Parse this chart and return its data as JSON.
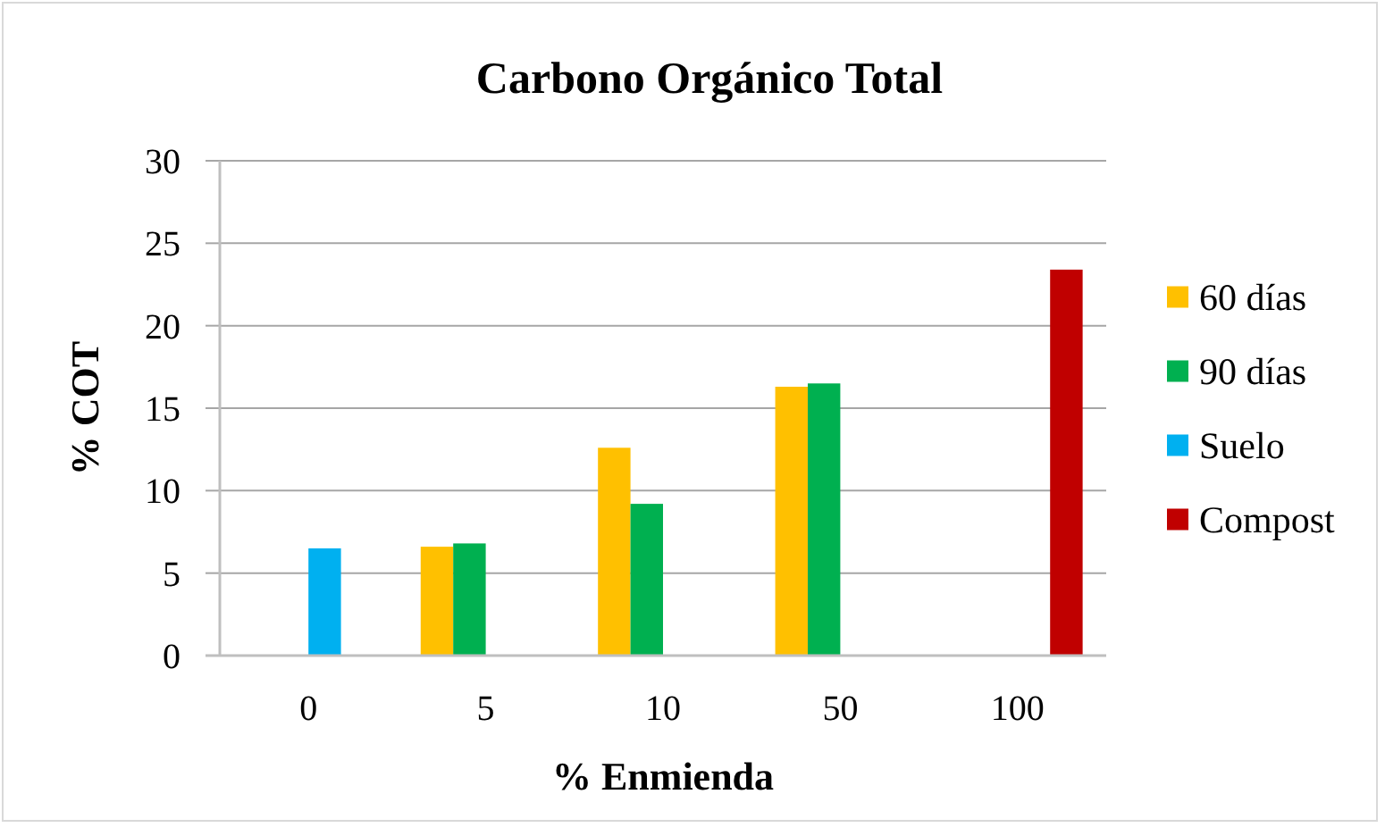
{
  "chart_data": {
    "type": "bar",
    "title": "Carbono Orgánico Total",
    "xlabel": "% Enmienda",
    "ylabel": "% COT",
    "categories": [
      "0",
      "5",
      "10",
      "50",
      "100"
    ],
    "series": [
      {
        "name": "60 días",
        "color": "#ffc000",
        "values": [
          null,
          6.6,
          12.6,
          16.3,
          null
        ]
      },
      {
        "name": "90 días",
        "color": "#00b050",
        "values": [
          null,
          6.8,
          9.2,
          16.5,
          null
        ]
      },
      {
        "name": "Suelo",
        "color": "#00b0f0",
        "values": [
          6.5,
          null,
          null,
          null,
          null
        ]
      },
      {
        "name": "Compost",
        "color": "#c00000",
        "values": [
          null,
          null,
          null,
          null,
          23.4
        ]
      }
    ],
    "ylim": [
      0,
      30
    ],
    "yticks": [
      0,
      5,
      10,
      15,
      20,
      25,
      30
    ],
    "grid": "y",
    "legend": "right"
  }
}
